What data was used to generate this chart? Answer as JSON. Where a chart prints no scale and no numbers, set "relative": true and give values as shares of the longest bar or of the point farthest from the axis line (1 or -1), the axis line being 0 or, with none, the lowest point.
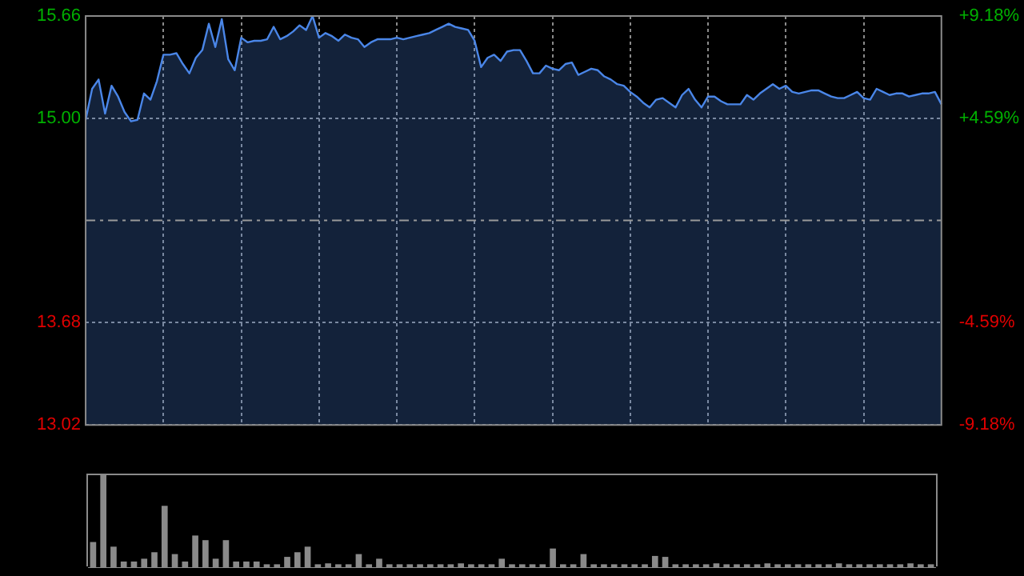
{
  "chart_data": [
    {
      "type": "area",
      "categories": [
        null,
        null,
        null,
        null,
        null,
        null,
        null,
        null,
        null,
        null,
        null,
        null,
        null,
        null,
        null,
        null,
        null,
        null,
        null,
        null,
        null,
        null,
        null,
        null,
        null,
        null,
        null,
        null,
        null,
        null,
        null,
        null,
        null,
        null,
        null,
        null,
        null,
        null,
        null,
        null,
        null,
        null,
        null,
        null,
        null,
        null,
        null,
        null,
        null,
        null,
        null,
        null,
        null,
        null,
        null,
        null,
        null,
        null,
        null,
        null,
        null,
        null,
        null,
        null,
        null,
        null,
        null,
        null,
        null,
        null,
        null,
        null,
        null,
        null,
        null,
        null,
        null,
        null,
        null,
        null,
        null,
        null,
        null,
        null,
        null,
        null,
        null,
        null,
        null,
        null,
        null,
        null,
        null,
        null,
        null,
        null,
        null,
        null,
        null,
        null,
        null,
        null,
        null,
        null,
        null,
        null,
        null,
        null,
        null,
        null,
        null,
        null,
        null,
        null,
        null,
        null,
        null,
        null,
        null,
        null,
        null,
        null,
        null,
        null,
        null,
        null,
        null,
        null,
        null,
        null,
        null,
        null,
        null
      ],
      "series": [
        {
          "color": "#4a86e8",
          "values": [
            14.99,
            15.19,
            15.25,
            15.03,
            15.21,
            15.14,
            15.04,
            14.98,
            14.99,
            15.16,
            15.12,
            15.24,
            15.41,
            15.41,
            15.42,
            15.35,
            15.29,
            15.39,
            15.44,
            15.61,
            15.46,
            15.64,
            15.38,
            15.31,
            15.52,
            15.49,
            15.5,
            15.5,
            15.51,
            15.59,
            15.51,
            15.53,
            15.56,
            15.6,
            15.57,
            15.66,
            15.52,
            15.55,
            15.53,
            15.5,
            15.54,
            15.52,
            15.51,
            15.46,
            15.49,
            15.51,
            15.51,
            15.51,
            15.52,
            15.51,
            15.52,
            15.53,
            15.54,
            15.55,
            15.57,
            15.59,
            15.61,
            15.59,
            15.58,
            15.57,
            15.5,
            15.33,
            15.39,
            15.41,
            15.37,
            15.43,
            15.44,
            15.44,
            15.37,
            15.29,
            15.29,
            15.34,
            15.32,
            15.31,
            15.35,
            15.36,
            15.28,
            15.3,
            15.32,
            15.31,
            15.27,
            15.25,
            15.22,
            15.21,
            15.17,
            15.14,
            15.1,
            15.07,
            15.12,
            15.13,
            15.1,
            15.07,
            15.15,
            15.19,
            15.12,
            15.07,
            15.14,
            15.14,
            15.11,
            15.09,
            15.09,
            15.09,
            15.15,
            15.12,
            15.16,
            15.19,
            15.22,
            15.19,
            15.21,
            15.17,
            15.16,
            15.17,
            15.18,
            15.18,
            15.16,
            15.14,
            15.13,
            15.13,
            15.15,
            15.17,
            15.13,
            15.12,
            15.19,
            15.17,
            15.15,
            15.16,
            15.16,
            15.14,
            15.15,
            15.16,
            15.16,
            15.17,
            15.09
          ]
        }
      ],
      "ylim": [
        13.02,
        15.66
      ],
      "yticks": [
        13.02,
        13.68,
        {
          "value": 15,
          "label": "15.00"
        },
        15.66
      ],
      "y2lim": [
        -9.18,
        9.18
      ],
      "y2ticks": [
        {
          "value": -9.18,
          "label": "-9.18%"
        },
        {
          "value": -4.59,
          "label": "-4.59%"
        },
        {
          "value": 4.59,
          "label": "+4.59%"
        },
        {
          "value": 9.18,
          "label": "+9.18%"
        }
      ],
      "ref_lines": [
        {
          "axis": "y",
          "value": 14.34,
          "color": "#9a9a9a",
          "line_style": "dashed"
        }
      ],
      "grid": true,
      "legend": false,
      "marker": "none"
    },
    {
      "type": "bar",
      "relative": true,
      "categories": [
        null,
        null,
        null,
        null,
        null,
        null,
        null,
        null,
        null,
        null,
        null,
        null,
        null,
        null,
        null,
        null,
        null,
        null,
        null,
        null,
        null,
        null,
        null,
        null,
        null,
        null,
        null,
        null,
        null,
        null,
        null,
        null,
        null,
        null,
        null,
        null,
        null,
        null,
        null,
        null,
        null,
        null,
        null,
        null,
        null,
        null,
        null,
        null,
        null,
        null,
        null,
        null,
        null,
        null,
        null,
        null,
        null,
        null,
        null,
        null,
        null,
        null,
        null,
        null,
        null,
        null,
        null,
        null,
        null,
        null,
        null,
        null,
        null,
        null,
        null,
        null,
        null,
        null,
        null,
        null,
        null,
        null,
        null
      ],
      "values": [
        0.28,
        1,
        0.23,
        0.07,
        0.07,
        0.1,
        0.17,
        0.67,
        0.15,
        0.07,
        0.35,
        0.3,
        0.1,
        0.3,
        0.07,
        0.07,
        0.07,
        0.04,
        0.04,
        0.12,
        0.17,
        0.23,
        0.04,
        0.05,
        0.04,
        0.04,
        0.15,
        0.04,
        0.1,
        0.04,
        0.04,
        0.04,
        0.04,
        0.04,
        0.04,
        0.04,
        0.05,
        0.04,
        0.04,
        0.04,
        0.1,
        0.04,
        0.04,
        0.04,
        0.04,
        0.21,
        0.04,
        0.04,
        0.15,
        0.04,
        0.04,
        0.04,
        0.04,
        0.04,
        0.04,
        0.13,
        0.12,
        0.04,
        0.04,
        0.04,
        0.04,
        0.05,
        0.04,
        0.04,
        0.04,
        0.04,
        0.05,
        0.04,
        0.04,
        0.04,
        0.04,
        0.04,
        0.04,
        0.05,
        0.04,
        0.04,
        0.04,
        0.04,
        0.04,
        0.04,
        0.05,
        0.04,
        0.04
      ],
      "color": "#8a8a8a",
      "legend": false
    }
  ]
}
